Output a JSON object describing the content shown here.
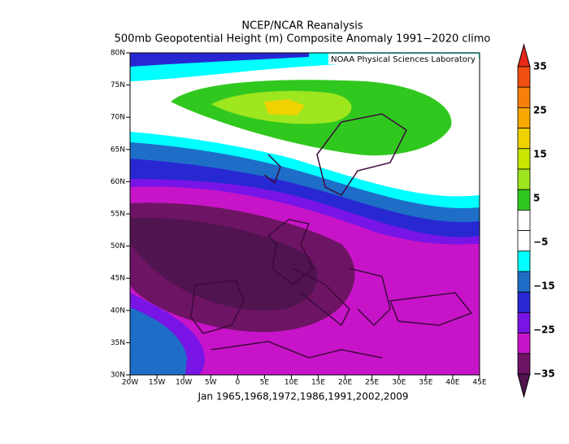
{
  "header": {
    "title": "NCEP/NCAR Reanalysis",
    "subtitle": "500mb Geopotential Height (m) Composite Anomaly 1991−2020 climo"
  },
  "map": {
    "credit": "NOAA Physical Sciences Laboratory",
    "lat_labels": [
      "80N",
      "75N",
      "70N",
      "65N",
      "60N",
      "55N",
      "50N",
      "45N",
      "40N",
      "35N",
      "30N"
    ],
    "lon_labels": [
      "20W",
      "15W",
      "10W",
      "5W",
      "0",
      "5E",
      "10E",
      "15E",
      "20E",
      "25E",
      "30E",
      "35E",
      "40E",
      "45E"
    ],
    "caption": "Jan 1965,1968,1972,1986,1991,2002,2009"
  },
  "colorbar": {
    "labels": [
      "35",
      "25",
      "15",
      "5",
      "−5",
      "−15",
      "−25",
      "−35"
    ],
    "colors": [
      "#e8281a",
      "#f04f10",
      "#f7800a",
      "#f8a800",
      "#f0d200",
      "#c8e600",
      "#9ee61e",
      "#30c81e",
      "#ffffff",
      "#ffffff",
      "#00ffff",
      "#1e6ec8",
      "#2828d2",
      "#7814e6",
      "#c814c8",
      "#6e1464",
      "#501450"
    ]
  }
}
